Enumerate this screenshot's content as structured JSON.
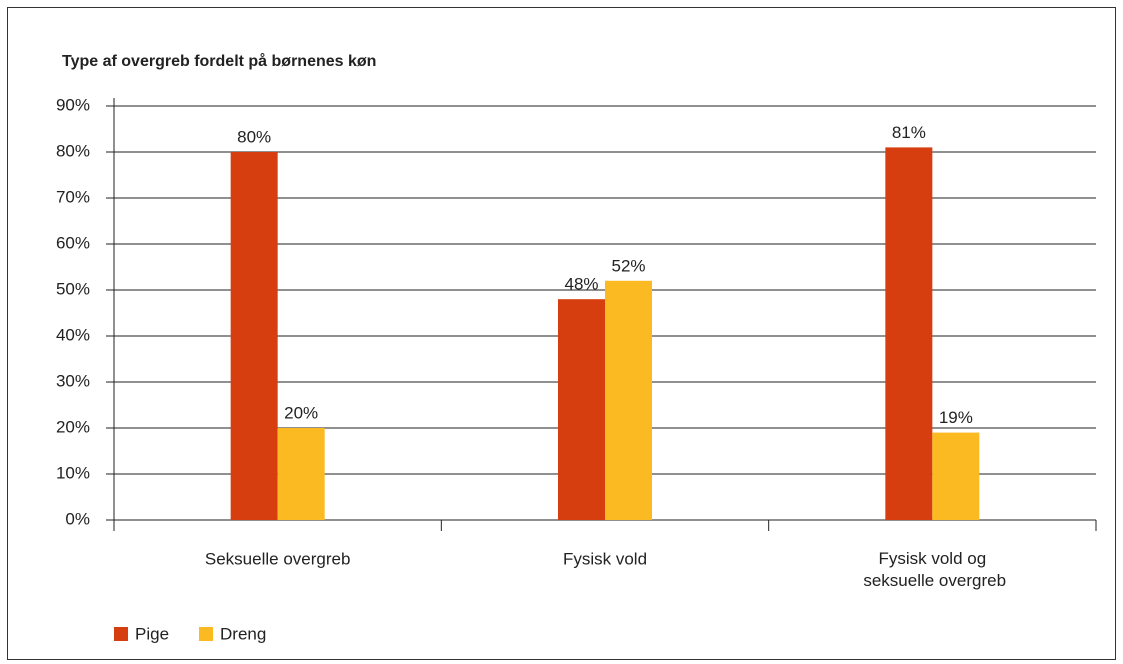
{
  "chart_data": {
    "type": "bar",
    "title": "Type af overgreb fordelt på børnenes køn",
    "categories": [
      "Seksuelle overgreb",
      "Fysisk vold",
      "Fysisk vold og seksuelle overgreb"
    ],
    "series": [
      {
        "name": "Pige",
        "color": "#d63e0f",
        "values": [
          80,
          48,
          81
        ],
        "value_labels": [
          "80%",
          "48%",
          "81%"
        ]
      },
      {
        "name": "Dreng",
        "color": "#fbb922",
        "values": [
          20,
          52,
          19
        ],
        "value_labels": [
          "20%",
          "52%",
          "19%"
        ]
      }
    ],
    "ylim": [
      0,
      90
    ],
    "yticks": [
      {
        "value": 0,
        "label": "0%"
      },
      {
        "value": 10,
        "label": "10%"
      },
      {
        "value": 20,
        "label": "20%"
      },
      {
        "value": 30,
        "label": "30%"
      },
      {
        "value": 40,
        "label": "40%"
      },
      {
        "value": 50,
        "label": "50%"
      },
      {
        "value": 60,
        "label": "60%"
      },
      {
        "value": 70,
        "label": "70%"
      },
      {
        "value": 80,
        "label": "80%"
      },
      {
        "value": 90,
        "label": "90%"
      }
    ],
    "grid": true,
    "legend": "bottom-left"
  }
}
